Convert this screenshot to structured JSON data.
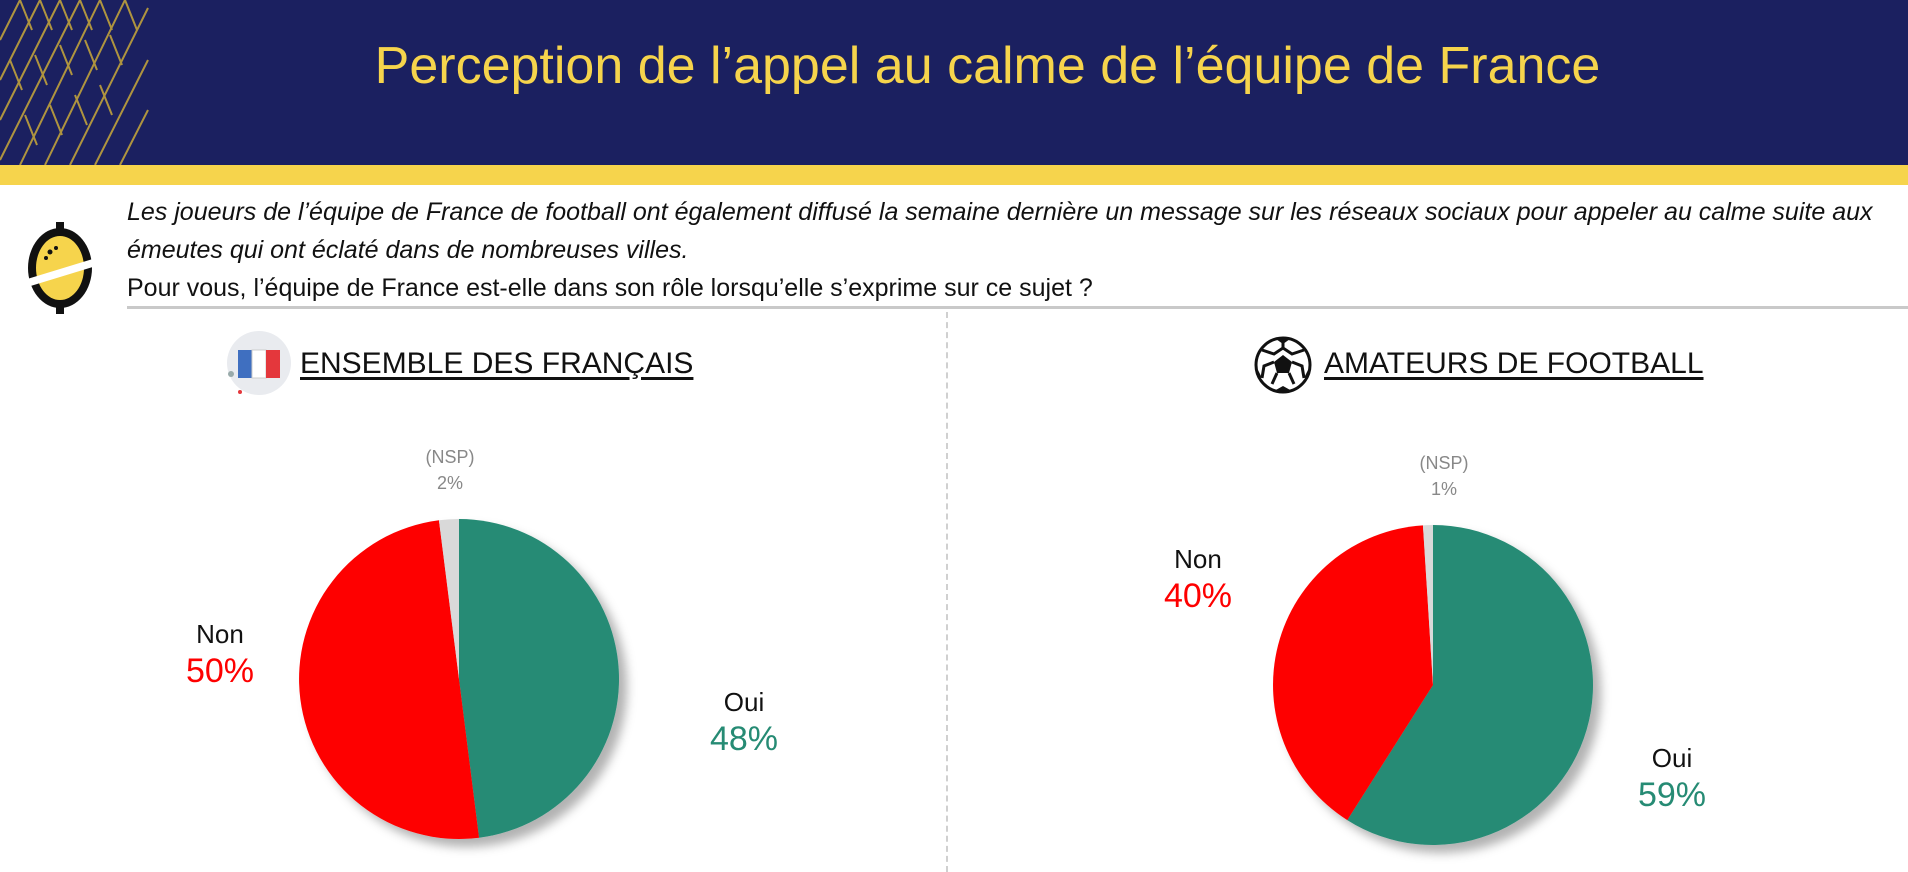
{
  "header": {
    "title": "Perception de l’appel au calme de l’équipe de France",
    "bg_color": "#1b2060",
    "title_color": "#f6d44c"
  },
  "question": {
    "intro": "Les joueurs de l’équipe de France de football ont également diffusé la semaine dernière un message sur les réseaux sociaux pour appeler au calme suite aux émeutes qui ont éclaté dans de nombreuses villes.",
    "text": "Pour vous, l’équipe de France est-elle dans son rôle lorsqu’elle s’exprime sur ce sujet ?"
  },
  "icons": {
    "logo": "lemon-logo-icon",
    "left": "french-flag-icon",
    "right": "soccer-ball-icon"
  },
  "colors": {
    "oui": "#268b74",
    "non": "#fe0000",
    "nsp": "#d9d9d9"
  },
  "chart_data": [
    {
      "type": "pie",
      "title": "ENSEMBLE DES FRANÇAIS",
      "slices": [
        {
          "label": "Oui",
          "value": 48,
          "display": "48%",
          "color": "#268b74"
        },
        {
          "label": "Non",
          "value": 50,
          "display": "50%",
          "color": "#fe0000"
        },
        {
          "label": "(NSP)",
          "value": 2,
          "display": "2%",
          "color": "#d9d9d9"
        }
      ]
    },
    {
      "type": "pie",
      "title": "AMATEURS DE FOOTBALL",
      "slices": [
        {
          "label": "Oui",
          "value": 59,
          "display": "59%",
          "color": "#268b74"
        },
        {
          "label": "Non",
          "value": 40,
          "display": "40%",
          "color": "#fe0000"
        },
        {
          "label": "(NSP)",
          "value": 1,
          "display": "1%",
          "color": "#d9d9d9"
        }
      ]
    }
  ]
}
